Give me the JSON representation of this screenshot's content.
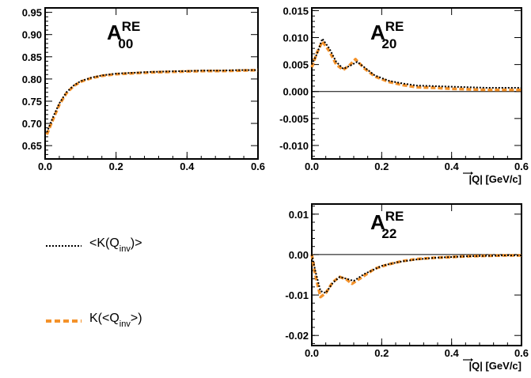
{
  "colors": {
    "frame": "#000000",
    "black_series": "#000000",
    "orange_series": "#f4922a",
    "zero_line": "#000000"
  },
  "legend": [
    {
      "key": "black",
      "label_main": "<K(Q",
      "label_sub": "inv",
      "label_end": ")>",
      "style": "dotted",
      "color": "#000000"
    },
    {
      "key": "orange",
      "label_main": "K(<Q",
      "label_sub": "inv",
      "label_end": ">)",
      "style": "dashed",
      "color": "#f4922a"
    }
  ],
  "chart_data": [
    {
      "id": "A00",
      "type": "line",
      "title": "A",
      "title_sup": "RE",
      "title_sub": "00",
      "xlabel": "",
      "xlim": [
        0,
        0.6
      ],
      "ylim": [
        0.62,
        0.96
      ],
      "xticks": [
        "0.0",
        "0.2",
        "0.4",
        "0.6"
      ],
      "yticks": [
        "0.65",
        "0.70",
        "0.75",
        "0.80",
        "0.85",
        "0.90",
        "0.95"
      ],
      "zero_line": false,
      "series": [
        {
          "key": "black",
          "points": [
            [
              0.005,
              0.68
            ],
            [
              0.02,
              0.71
            ],
            [
              0.04,
              0.745
            ],
            [
              0.06,
              0.77
            ],
            [
              0.08,
              0.785
            ],
            [
              0.1,
              0.795
            ],
            [
              0.13,
              0.803
            ],
            [
              0.16,
              0.808
            ],
            [
              0.2,
              0.812
            ],
            [
              0.25,
              0.814
            ],
            [
              0.3,
              0.816
            ],
            [
              0.35,
              0.817
            ],
            [
              0.4,
              0.818
            ],
            [
              0.45,
              0.819
            ],
            [
              0.5,
              0.819
            ],
            [
              0.55,
              0.82
            ],
            [
              0.6,
              0.82
            ]
          ]
        },
        {
          "key": "orange",
          "points": [
            [
              0.005,
              0.675
            ],
            [
              0.02,
              0.705
            ],
            [
              0.04,
              0.742
            ],
            [
              0.06,
              0.768
            ],
            [
              0.08,
              0.784
            ],
            [
              0.1,
              0.794
            ],
            [
              0.13,
              0.802
            ],
            [
              0.16,
              0.807
            ],
            [
              0.2,
              0.811
            ],
            [
              0.25,
              0.813
            ],
            [
              0.3,
              0.815
            ],
            [
              0.35,
              0.816
            ],
            [
              0.4,
              0.817
            ],
            [
              0.45,
              0.818
            ],
            [
              0.5,
              0.818
            ],
            [
              0.55,
              0.819
            ],
            [
              0.6,
              0.82
            ]
          ]
        }
      ]
    },
    {
      "id": "A20",
      "type": "line",
      "title": "A",
      "title_sup": "RE",
      "title_sub": "20",
      "xlabel": "|Q| [GeV/c]",
      "xlim": [
        0,
        0.6
      ],
      "ylim": [
        -0.0125,
        0.0155
      ],
      "xticks": [
        "0.0",
        "0.2",
        "0.4",
        "0.6"
      ],
      "yticks": [
        "-0.010",
        "-0.005",
        "0.000",
        "0.005",
        "0.010",
        "0.015"
      ],
      "zero_line": true,
      "series": [
        {
          "key": "black",
          "points": [
            [
              0.0,
              0.005
            ],
            [
              0.015,
              0.007
            ],
            [
              0.03,
              0.0098
            ],
            [
              0.05,
              0.008
            ],
            [
              0.07,
              0.0055
            ],
            [
              0.09,
              0.0042
            ],
            [
              0.11,
              0.0048
            ],
            [
              0.13,
              0.0055
            ],
            [
              0.15,
              0.0045
            ],
            [
              0.18,
              0.003
            ],
            [
              0.22,
              0.002
            ],
            [
              0.26,
              0.0015
            ],
            [
              0.3,
              0.0011
            ],
            [
              0.35,
              0.001
            ],
            [
              0.4,
              0.0009
            ],
            [
              0.45,
              0.0008
            ],
            [
              0.5,
              0.0007
            ],
            [
              0.55,
              0.0007
            ],
            [
              0.6,
              0.0007
            ]
          ]
        },
        {
          "key": "orange",
          "points": [
            [
              0.0,
              0.0045
            ],
            [
              0.015,
              0.0072
            ],
            [
              0.03,
              0.0093
            ],
            [
              0.05,
              0.0075
            ],
            [
              0.07,
              0.005
            ],
            [
              0.09,
              0.004
            ],
            [
              0.11,
              0.005
            ],
            [
              0.125,
              0.006
            ],
            [
              0.15,
              0.0043
            ],
            [
              0.18,
              0.0028
            ],
            [
              0.22,
              0.0018
            ],
            [
              0.26,
              0.0012
            ],
            [
              0.3,
              0.0008
            ],
            [
              0.35,
              0.0007
            ],
            [
              0.4,
              0.0005
            ],
            [
              0.45,
              0.0004
            ],
            [
              0.5,
              0.0003
            ],
            [
              0.55,
              0.0003
            ],
            [
              0.6,
              0.0003
            ]
          ]
        }
      ]
    },
    {
      "id": "A22",
      "type": "line",
      "title": "A",
      "title_sup": "RE",
      "title_sub": "22",
      "xlabel": "|Q| [GeV/c]",
      "xlim": [
        0,
        0.6
      ],
      "ylim": [
        -0.0225,
        0.0125
      ],
      "xticks": [
        "0.0",
        "0.2",
        "0.4",
        "0.6"
      ],
      "yticks": [
        "-0.02",
        "-0.01",
        "0.00",
        "0.01"
      ],
      "zero_line": true,
      "series": [
        {
          "key": "black",
          "points": [
            [
              0.0,
              0.0
            ],
            [
              0.01,
              -0.004
            ],
            [
              0.025,
              -0.009
            ],
            [
              0.04,
              -0.0095
            ],
            [
              0.06,
              -0.007
            ],
            [
              0.08,
              -0.0055
            ],
            [
              0.1,
              -0.006
            ],
            [
              0.12,
              -0.0065
            ],
            [
              0.15,
              -0.0048
            ],
            [
              0.2,
              -0.0028
            ],
            [
              0.25,
              -0.0018
            ],
            [
              0.3,
              -0.0012
            ],
            [
              0.35,
              -0.0008
            ],
            [
              0.4,
              -0.0006
            ],
            [
              0.45,
              -0.0004
            ],
            [
              0.5,
              -0.0003
            ],
            [
              0.55,
              -0.0002
            ],
            [
              0.6,
              -0.0002
            ]
          ]
        },
        {
          "key": "orange",
          "points": [
            [
              0.0,
              0.0
            ],
            [
              0.01,
              -0.005
            ],
            [
              0.025,
              -0.0105
            ],
            [
              0.04,
              -0.0095
            ],
            [
              0.06,
              -0.0068
            ],
            [
              0.08,
              -0.0055
            ],
            [
              0.1,
              -0.0062
            ],
            [
              0.115,
              -0.0072
            ],
            [
              0.14,
              -0.0058
            ],
            [
              0.18,
              -0.0035
            ],
            [
              0.22,
              -0.0024
            ],
            [
              0.26,
              -0.0016
            ],
            [
              0.3,
              -0.0011
            ],
            [
              0.35,
              -0.0008
            ],
            [
              0.4,
              -0.0006
            ],
            [
              0.45,
              -0.0004
            ],
            [
              0.5,
              -0.0003
            ],
            [
              0.55,
              -0.0002
            ],
            [
              0.6,
              -0.0002
            ]
          ]
        }
      ]
    }
  ]
}
